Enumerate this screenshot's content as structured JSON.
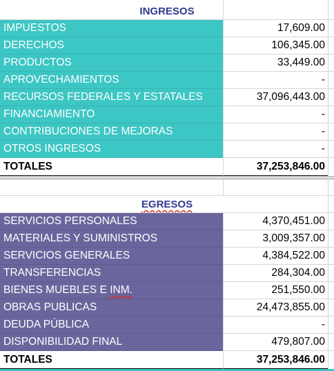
{
  "ingresos": {
    "title": "INGRESOS",
    "rows": [
      {
        "label": "IMPUESTOS",
        "value": "17,609.00"
      },
      {
        "label": "DERECHOS",
        "value": "106,345.00"
      },
      {
        "label": "PRODUCTOS",
        "value": "33,449.00"
      },
      {
        "label": "APROVECHAMIENTOS",
        "value": "-"
      },
      {
        "label": "RECURSOS FEDERALES Y ESTATALES",
        "value": "37,096,443.00"
      },
      {
        "label": "FINANCIAMIENTO",
        "value": "-"
      },
      {
        "label": "CONTRIBUCIONES DE MEJORAS",
        "value": "-"
      },
      {
        "label": "OTROS INGRESOS",
        "value": "-"
      }
    ],
    "total_label": "TOTALES",
    "total_value": "37,253,846.00",
    "color": "#3cc6c4"
  },
  "egresos": {
    "title": "EGRESOS",
    "rows": [
      {
        "label": "SERVICIOS PERSONALES",
        "value": "4,370,451.00"
      },
      {
        "label": "MATERIALES Y SUMINISTROS",
        "value": "3,009,357.00"
      },
      {
        "label": "SERVICIOS GENERALES",
        "value": "4,384,522.00"
      },
      {
        "label": "TRANSFERENCIAS",
        "value": "284,304.00"
      },
      {
        "label": "BIENES MUEBLES E INM.",
        "value": "251,550.00"
      },
      {
        "label": "OBRAS PUBLICAS",
        "value": "24,473,855.00"
      },
      {
        "label": "DEUDA PÚBLICA",
        "value": "-"
      },
      {
        "label": "DISPONIBILIDAD FINAL",
        "value": "479,807.00"
      }
    ],
    "total_label": "TOTALES",
    "total_value": "37,253,846.00",
    "color": "#6a659c"
  }
}
